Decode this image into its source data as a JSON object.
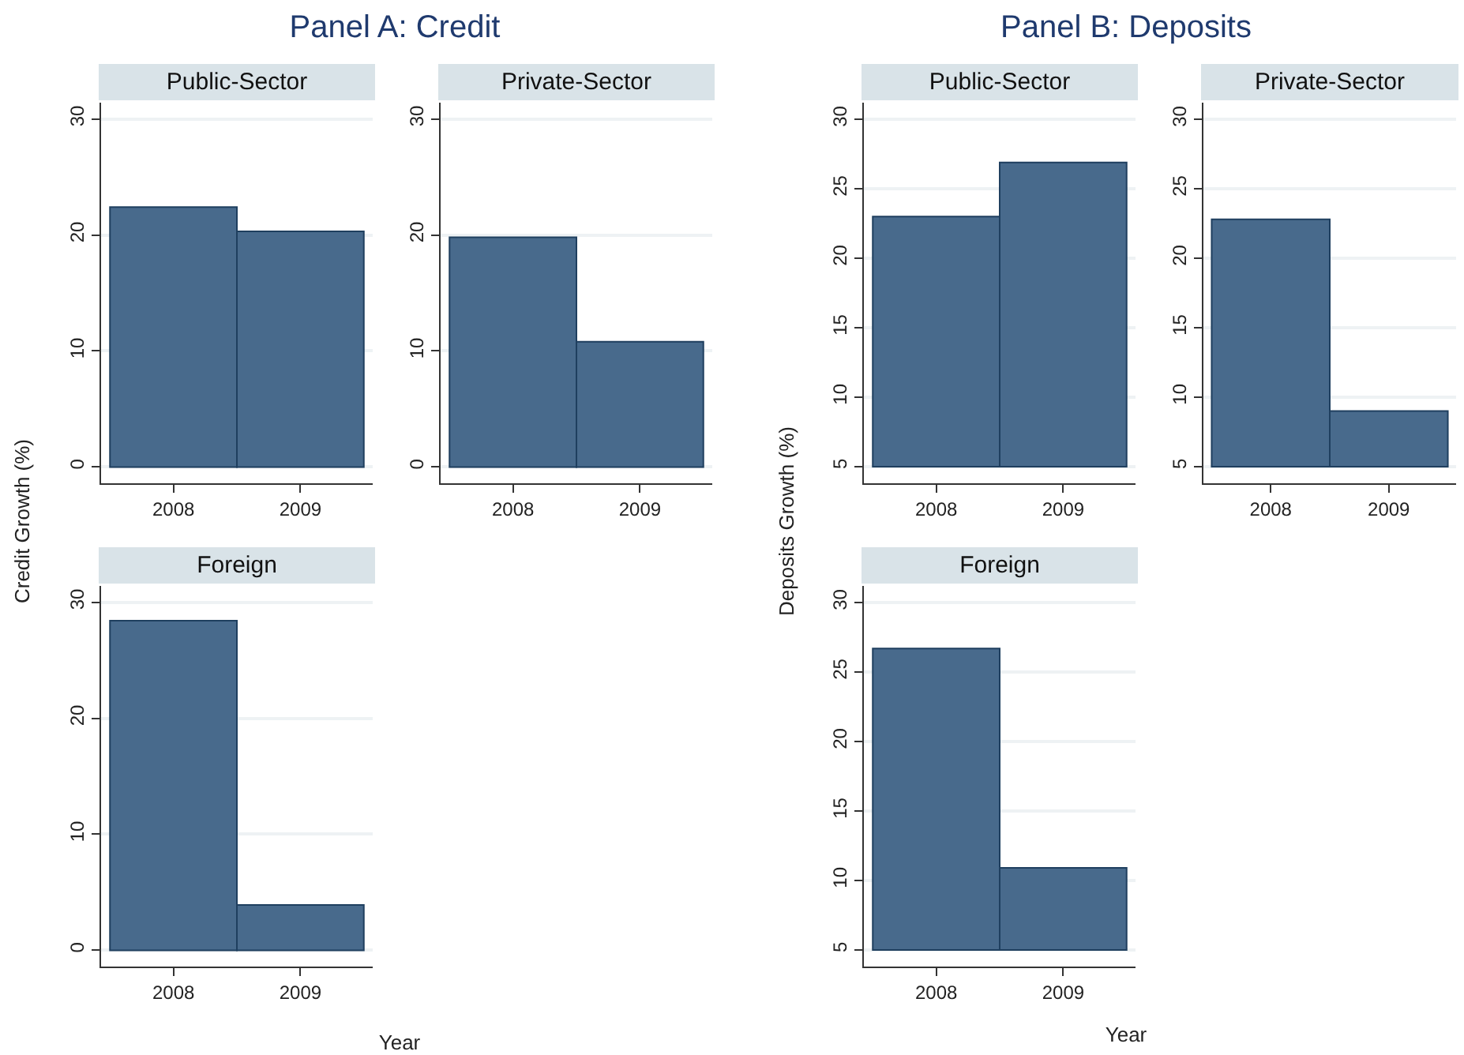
{
  "chart_data": [
    {
      "type": "bar",
      "title": "Panel A: Credit",
      "subtitle": "Public-Sector",
      "ylabel": "Credit Growth (%)",
      "categories": [
        "2008",
        "2009"
      ],
      "values": [
        22.4,
        20.3
      ],
      "color": "#486a8c",
      "ylim": [
        -1.4,
        31.4
      ],
      "yticks": [
        0,
        10,
        20,
        30
      ],
      "grid": "y"
    },
    {
      "type": "bar",
      "subtitle": "Private-Sector",
      "categories": [
        "2008",
        "2009"
      ],
      "values": [
        19.8,
        10.8
      ],
      "color": "#486a8c",
      "ylim": [
        -1.4,
        31.4
      ],
      "yticks": [
        0,
        10,
        20,
        30
      ],
      "grid": "y"
    },
    {
      "type": "bar",
      "subtitle": "Foreign",
      "xlabel": "Year",
      "categories": [
        "2008",
        "2009"
      ],
      "values": [
        28.4,
        3.9
      ],
      "color": "#486a8c",
      "ylim": [
        -1.4,
        31.4
      ],
      "yticks": [
        0,
        10,
        20,
        30
      ],
      "grid": "y"
    },
    {
      "type": "bar",
      "title": "Panel B: Deposits",
      "subtitle": "Public-Sector",
      "ylabel": "Deposits Growth (%)",
      "categories": [
        "2008",
        "2009"
      ],
      "base": [
        5,
        5
      ],
      "values": [
        18.0,
        21.9
      ],
      "color": "#486a8c",
      "ylim": [
        3.8,
        31.2
      ],
      "yticks": [
        5,
        10,
        15,
        20,
        25,
        30
      ],
      "grid": "y"
    },
    {
      "type": "bar",
      "subtitle": "Private-Sector",
      "categories": [
        "2008",
        "2009"
      ],
      "base": [
        5,
        5
      ],
      "values": [
        17.8,
        4.0
      ],
      "color": "#486a8c",
      "ylim": [
        3.8,
        31.2
      ],
      "yticks": [
        5,
        10,
        15,
        20,
        25,
        30
      ],
      "grid": "y"
    },
    {
      "type": "bar",
      "subtitle": "Foreign",
      "xlabel": "Year",
      "categories": [
        "2008",
        "2009"
      ],
      "base": [
        5,
        5
      ],
      "values": [
        21.7,
        5.9
      ],
      "color": "#486a8c",
      "ylim": [
        3.8,
        31.2
      ],
      "yticks": [
        5,
        10,
        15,
        20,
        25,
        30
      ],
      "grid": "y"
    }
  ]
}
